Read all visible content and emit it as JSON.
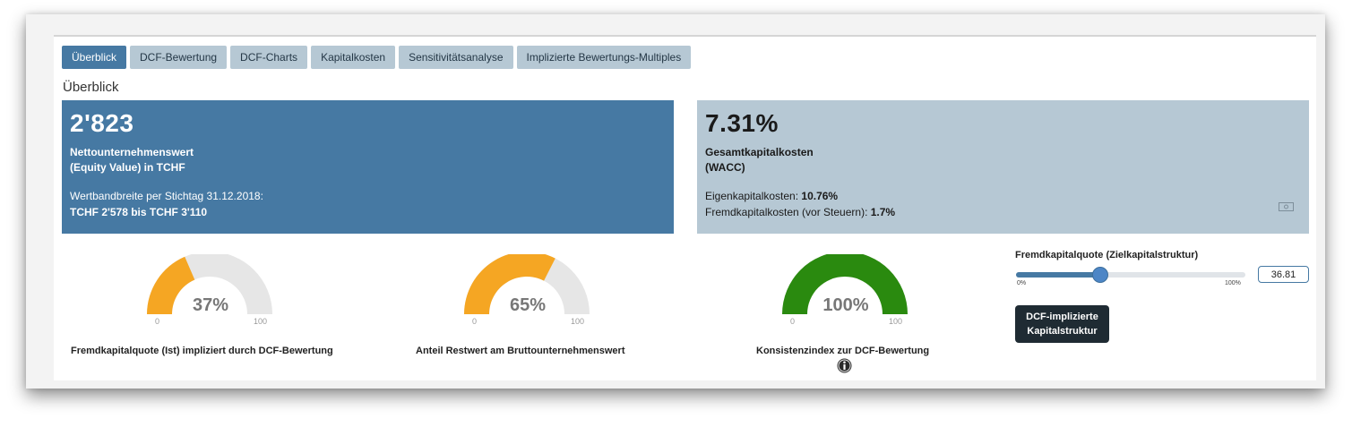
{
  "tabs": [
    {
      "label": "Überblick",
      "active": true
    },
    {
      "label": "DCF-Bewertung",
      "active": false
    },
    {
      "label": "DCF-Charts",
      "active": false
    },
    {
      "label": "Kapitalkosten",
      "active": false
    },
    {
      "label": "Sensitivitätsanalyse",
      "active": false
    },
    {
      "label": "Implizierte Bewertungs-Multiples",
      "active": false
    }
  ],
  "section_title": "Überblick",
  "equity_card": {
    "value": "2'823",
    "label_line1": "Nettounternehmenswert",
    "label_line2": "(Equity Value) in TCHF",
    "range_label": "Wertbandbreite per Stichtag 31.12.2018:",
    "range_value": "TCHF 2'578 bis TCHF 3'110",
    "bg_color": "#4679a3"
  },
  "wacc_card": {
    "value": "7.31%",
    "label_line1": "Gesamtkapitalkosten",
    "label_line2": "(WACC)",
    "equity_cost_label": "Eigenkapitalkosten: ",
    "equity_cost_value": "10.76%",
    "debt_cost_label": "Fremdkapitalkosten (vor Steuern): ",
    "debt_cost_value": "1.7%",
    "toolbar_icon": "money-icon",
    "bg_color": "#b6c8d4"
  },
  "gauges": [
    {
      "value": 37,
      "display": "37%",
      "min": "0",
      "max": "100",
      "color": "#f5a623",
      "caption": "Fremdkapitalquote (Ist) impliziert durch DCF-Bewertung"
    },
    {
      "value": 65,
      "display": "65%",
      "min": "0",
      "max": "100",
      "color": "#f5a623",
      "caption": "Anteil Restwert am Bruttounternehmenswert"
    },
    {
      "value": 100,
      "display": "100%",
      "min": "0",
      "max": "100",
      "color": "#2a8a0f",
      "caption": "Konsistenzindex zur DCF-Bewertung"
    }
  ],
  "gauge_track_color": "#e6e6e6",
  "info_icon": "info-icon",
  "slider": {
    "label": "Fremdkapitalquote (Zielkapitalstruktur)",
    "min_label": "0%",
    "max_label": "100%",
    "value": 36.81,
    "input_value": "36.81"
  },
  "dcf_button": {
    "line1": "DCF-implizierte",
    "line2": "Kapitalstruktur"
  }
}
